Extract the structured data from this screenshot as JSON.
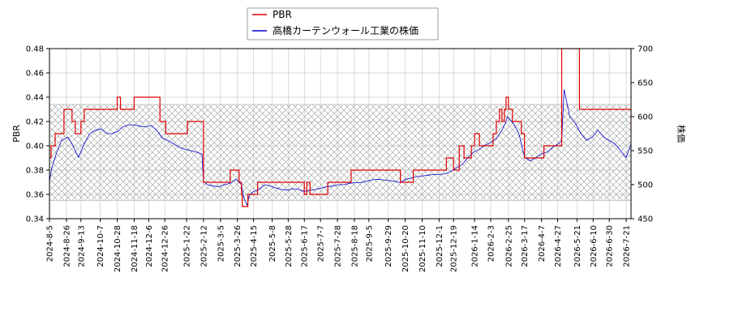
{
  "chart_data": {
    "type": "line",
    "title": "",
    "legend": {
      "placement": "top-center",
      "entries": [
        {
          "label": "PBR",
          "color": "#dd0000"
        },
        {
          "label": "高橋カーテンウォール工業の株価",
          "color": "#0000cc"
        }
      ]
    },
    "left_axis": {
      "label": "PBR",
      "range": [
        0.34,
        0.48
      ],
      "ticks": [
        "0.34",
        "0.36",
        "0.38",
        "0.40",
        "0.42",
        "0.44",
        "0.46",
        "0.48"
      ]
    },
    "right_axis": {
      "label": "株価",
      "range": [
        450,
        700
      ],
      "ticks": [
        "450",
        "500",
        "550",
        "600",
        "650",
        "700"
      ]
    },
    "x_axis": {
      "range": [
        "2024-08-05",
        "2026-07-27"
      ],
      "ticks": [
        "2024-8-5",
        "2024-8-26",
        "2024-9-13",
        "2024-10-7",
        "2024-10-28",
        "2024-11-18",
        "2024-12-6",
        "2024-12-26",
        "2025-1-22",
        "2025-2-12",
        "2025-3-5",
        "2025-3-26",
        "2025-4-15",
        "2025-5-8",
        "2025-5-28",
        "2025-6-17",
        "2025-7-7",
        "2025-7-28",
        "2025-8-18",
        "2025-9-5",
        "2025-9-29",
        "2025-10-20",
        "2025-11-10",
        "2025-12-1",
        "2025-12-19",
        "2026-1-14",
        "2026-2-3",
        "2026-2-25",
        "2026-3-17",
        "2026-4-7",
        "2026-4-27",
        "2026-5-21",
        "2026-6-10",
        "2026-6-30",
        "2026-7-21"
      ]
    },
    "pbr_band": [
      0.355,
      0.434
    ],
    "grid": true,
    "series": [
      {
        "name": "PBR",
        "axis": "left",
        "color": "#dd0000",
        "x": [
          "2024-08-05",
          "2024-08-07",
          "2024-08-12",
          "2024-08-23",
          "2024-09-02",
          "2024-09-06",
          "2024-09-13",
          "2024-09-17",
          "2024-09-26",
          "2024-10-28",
          "2024-11-01",
          "2024-11-18",
          "2024-12-20",
          "2024-12-27",
          "2025-01-20",
          "2025-01-23",
          "2025-02-12",
          "2025-02-14",
          "2025-02-19",
          "2025-03-17",
          "2025-03-28",
          "2025-03-31",
          "2025-04-01",
          "2025-04-08",
          "2025-04-14",
          "2025-04-20",
          "2025-05-08",
          "2025-05-12",
          "2025-06-05",
          "2025-06-17",
          "2025-06-20",
          "2025-06-24",
          "2025-07-09",
          "2025-07-16",
          "2025-07-28",
          "2025-08-14",
          "2025-09-02",
          "2025-09-29",
          "2025-10-14",
          "2025-10-20",
          "2025-10-30",
          "2025-11-10",
          "2025-12-01",
          "2025-12-10",
          "2025-12-19",
          "2025-12-26",
          "2026-01-01",
          "2026-01-10",
          "2026-01-14",
          "2026-01-20",
          "2026-01-24",
          "2026-02-03",
          "2026-02-06",
          "2026-02-10",
          "2026-02-14",
          "2026-02-17",
          "2026-02-20",
          "2026-02-22",
          "2026-02-25",
          "2026-03-02",
          "2026-03-05",
          "2026-03-13",
          "2026-03-17",
          "2026-03-24",
          "2026-04-07",
          "2026-04-10",
          "2026-04-27",
          "2026-05-02",
          "2026-05-05",
          "2026-05-18",
          "2026-05-24",
          "2026-06-10",
          "2026-07-21",
          "2026-07-27"
        ],
        "values": [
          0.39,
          0.4,
          0.41,
          0.43,
          0.42,
          0.41,
          0.42,
          0.43,
          0.43,
          0.44,
          0.43,
          0.44,
          0.42,
          0.41,
          0.41,
          0.42,
          0.37,
          0.37,
          0.37,
          0.38,
          0.37,
          0.36,
          0.35,
          0.36,
          0.36,
          0.37,
          0.37,
          0.37,
          0.37,
          0.36,
          0.37,
          0.36,
          0.36,
          0.37,
          0.37,
          0.38,
          0.38,
          0.38,
          0.37,
          0.37,
          0.38,
          0.38,
          0.38,
          0.39,
          0.38,
          0.4,
          0.39,
          0.4,
          0.41,
          0.4,
          0.4,
          0.4,
          0.41,
          0.42,
          0.43,
          0.42,
          0.43,
          0.44,
          0.43,
          0.42,
          0.42,
          0.41,
          0.39,
          0.39,
          0.39,
          0.4,
          0.4,
          0.48,
          0.48,
          0.48,
          0.43,
          0.43,
          0.43,
          0.41
        ]
      },
      {
        "name": "高橋カーテンウォール工業の株価",
        "axis": "right",
        "color": "#0000cc",
        "x": [
          "2024-08-05",
          "2024-08-08",
          "2024-08-14",
          "2024-08-20",
          "2024-08-28",
          "2024-09-04",
          "2024-09-10",
          "2024-09-17",
          "2024-09-24",
          "2024-10-01",
          "2024-10-08",
          "2024-10-15",
          "2024-10-22",
          "2024-10-28",
          "2024-11-04",
          "2024-11-11",
          "2024-11-18",
          "2024-11-25",
          "2024-12-02",
          "2024-12-09",
          "2024-12-16",
          "2024-12-23",
          "2024-12-30",
          "2025-01-06",
          "2025-01-13",
          "2025-01-20",
          "2025-01-27",
          "2025-02-03",
          "2025-02-10",
          "2025-02-12",
          "2025-02-17",
          "2025-02-24",
          "2025-03-03",
          "2025-03-10",
          "2025-03-17",
          "2025-03-24",
          "2025-03-31",
          "2025-04-03",
          "2025-04-07",
          "2025-04-10",
          "2025-04-15",
          "2025-04-22",
          "2025-04-29",
          "2025-05-06",
          "2025-05-13",
          "2025-05-20",
          "2025-05-27",
          "2025-06-03",
          "2025-06-10",
          "2025-06-17",
          "2025-06-24",
          "2025-07-01",
          "2025-07-08",
          "2025-07-15",
          "2025-07-22",
          "2025-07-29",
          "2025-08-05",
          "2025-08-12",
          "2025-08-19",
          "2025-08-26",
          "2025-09-02",
          "2025-09-09",
          "2025-09-16",
          "2025-09-23",
          "2025-09-30",
          "2025-10-07",
          "2025-10-14",
          "2025-10-21",
          "2025-10-28",
          "2025-11-04",
          "2025-11-11",
          "2025-11-18",
          "2025-11-25",
          "2025-12-02",
          "2025-12-09",
          "2025-12-16",
          "2025-12-23",
          "2025-12-30",
          "2026-01-06",
          "2026-01-13",
          "2026-01-20",
          "2026-01-27",
          "2026-02-03",
          "2026-02-10",
          "2026-02-17",
          "2026-02-21",
          "2026-02-24",
          "2026-03-03",
          "2026-03-10",
          "2026-03-17",
          "2026-03-24",
          "2026-03-31",
          "2026-04-07",
          "2026-04-14",
          "2026-04-21",
          "2026-04-28",
          "2026-05-02",
          "2026-05-05",
          "2026-05-12",
          "2026-05-19",
          "2026-05-26",
          "2026-06-02",
          "2026-06-09",
          "2026-06-16",
          "2026-06-23",
          "2026-06-30",
          "2026-07-07",
          "2026-07-14",
          "2026-07-21",
          "2026-07-27"
        ],
        "values": [
          505,
          525,
          548,
          565,
          570,
          555,
          540,
          560,
          575,
          580,
          582,
          575,
          575,
          578,
          585,
          588,
          588,
          586,
          585,
          587,
          580,
          568,
          565,
          560,
          555,
          552,
          550,
          548,
          545,
          505,
          500,
          498,
          497,
          500,
          502,
          508,
          500,
          480,
          470,
          485,
          490,
          493,
          500,
          498,
          495,
          493,
          492,
          494,
          493,
          490,
          492,
          493,
          495,
          497,
          498,
          500,
          500,
          502,
          503,
          503,
          505,
          507,
          508,
          507,
          506,
          505,
          503,
          508,
          510,
          512,
          513,
          514,
          515,
          515,
          516,
          520,
          525,
          530,
          540,
          548,
          552,
          558,
          562,
          568,
          580,
          590,
          600,
          590,
          575,
          540,
          535,
          540,
          545,
          548,
          555,
          560,
          565,
          640,
          600,
          590,
          575,
          565,
          570,
          580,
          570,
          565,
          560,
          550,
          540,
          560
        ]
      }
    ]
  }
}
